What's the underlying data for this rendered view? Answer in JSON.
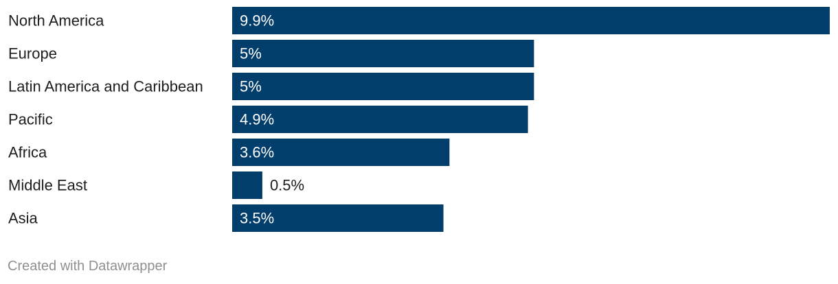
{
  "chart_data": {
    "type": "bar",
    "orientation": "horizontal",
    "categories": [
      "North America",
      "Europe",
      "Latin America and Caribbean",
      "Pacific",
      "Africa",
      "Middle East",
      "Asia"
    ],
    "values": [
      9.9,
      5,
      5,
      4.9,
      3.6,
      0.5,
      3.5
    ],
    "value_labels": [
      "9.9%",
      "5%",
      "5%",
      "4.9%",
      "3.6%",
      "0.5%",
      "3.5%"
    ],
    "xlim": [
      0,
      9.9
    ],
    "grid": false,
    "legend": "none",
    "colors": {
      "bar": "#013e6b",
      "label_inside": "#ffffff",
      "label_outside": "#1d1d1d",
      "row_label": "#1d1d1d"
    }
  },
  "footer": {
    "credit": "Created with Datawrapper",
    "credit_color": "#8f8f8f"
  }
}
